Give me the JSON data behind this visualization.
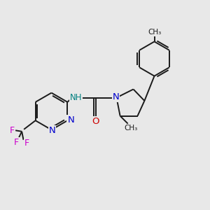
{
  "background_color": "#e8e8e8",
  "bond_color": "#1a1a1a",
  "atom_colors": {
    "N": "#0000cc",
    "O": "#cc0000",
    "F": "#cc00cc",
    "NH": "#008080",
    "C": "#1a1a1a"
  },
  "figsize": [
    3.0,
    3.0
  ],
  "dpi": 100
}
